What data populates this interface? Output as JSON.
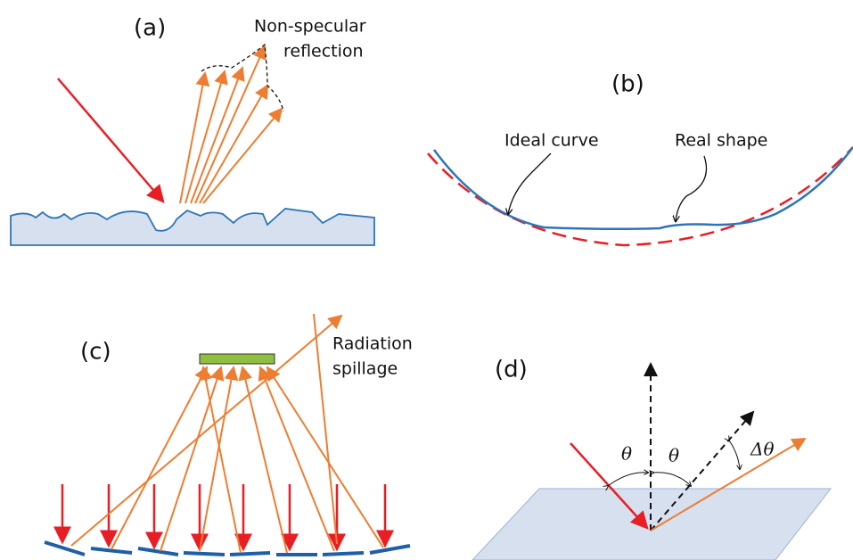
{
  "panels": [
    {
      "label": "(a)",
      "annotation": {
        "lines": [
          "Non-specular",
          "reflection"
        ]
      }
    },
    {
      "label": "(b)",
      "annotations": [
        "Ideal curve",
        "Real shape"
      ]
    },
    {
      "label": "(c)",
      "annotation": {
        "lines": [
          "Radiation",
          "spillage"
        ]
      }
    },
    {
      "label": "(d)",
      "angles": [
        "θ",
        "θ",
        "Δθ"
      ]
    }
  ]
}
